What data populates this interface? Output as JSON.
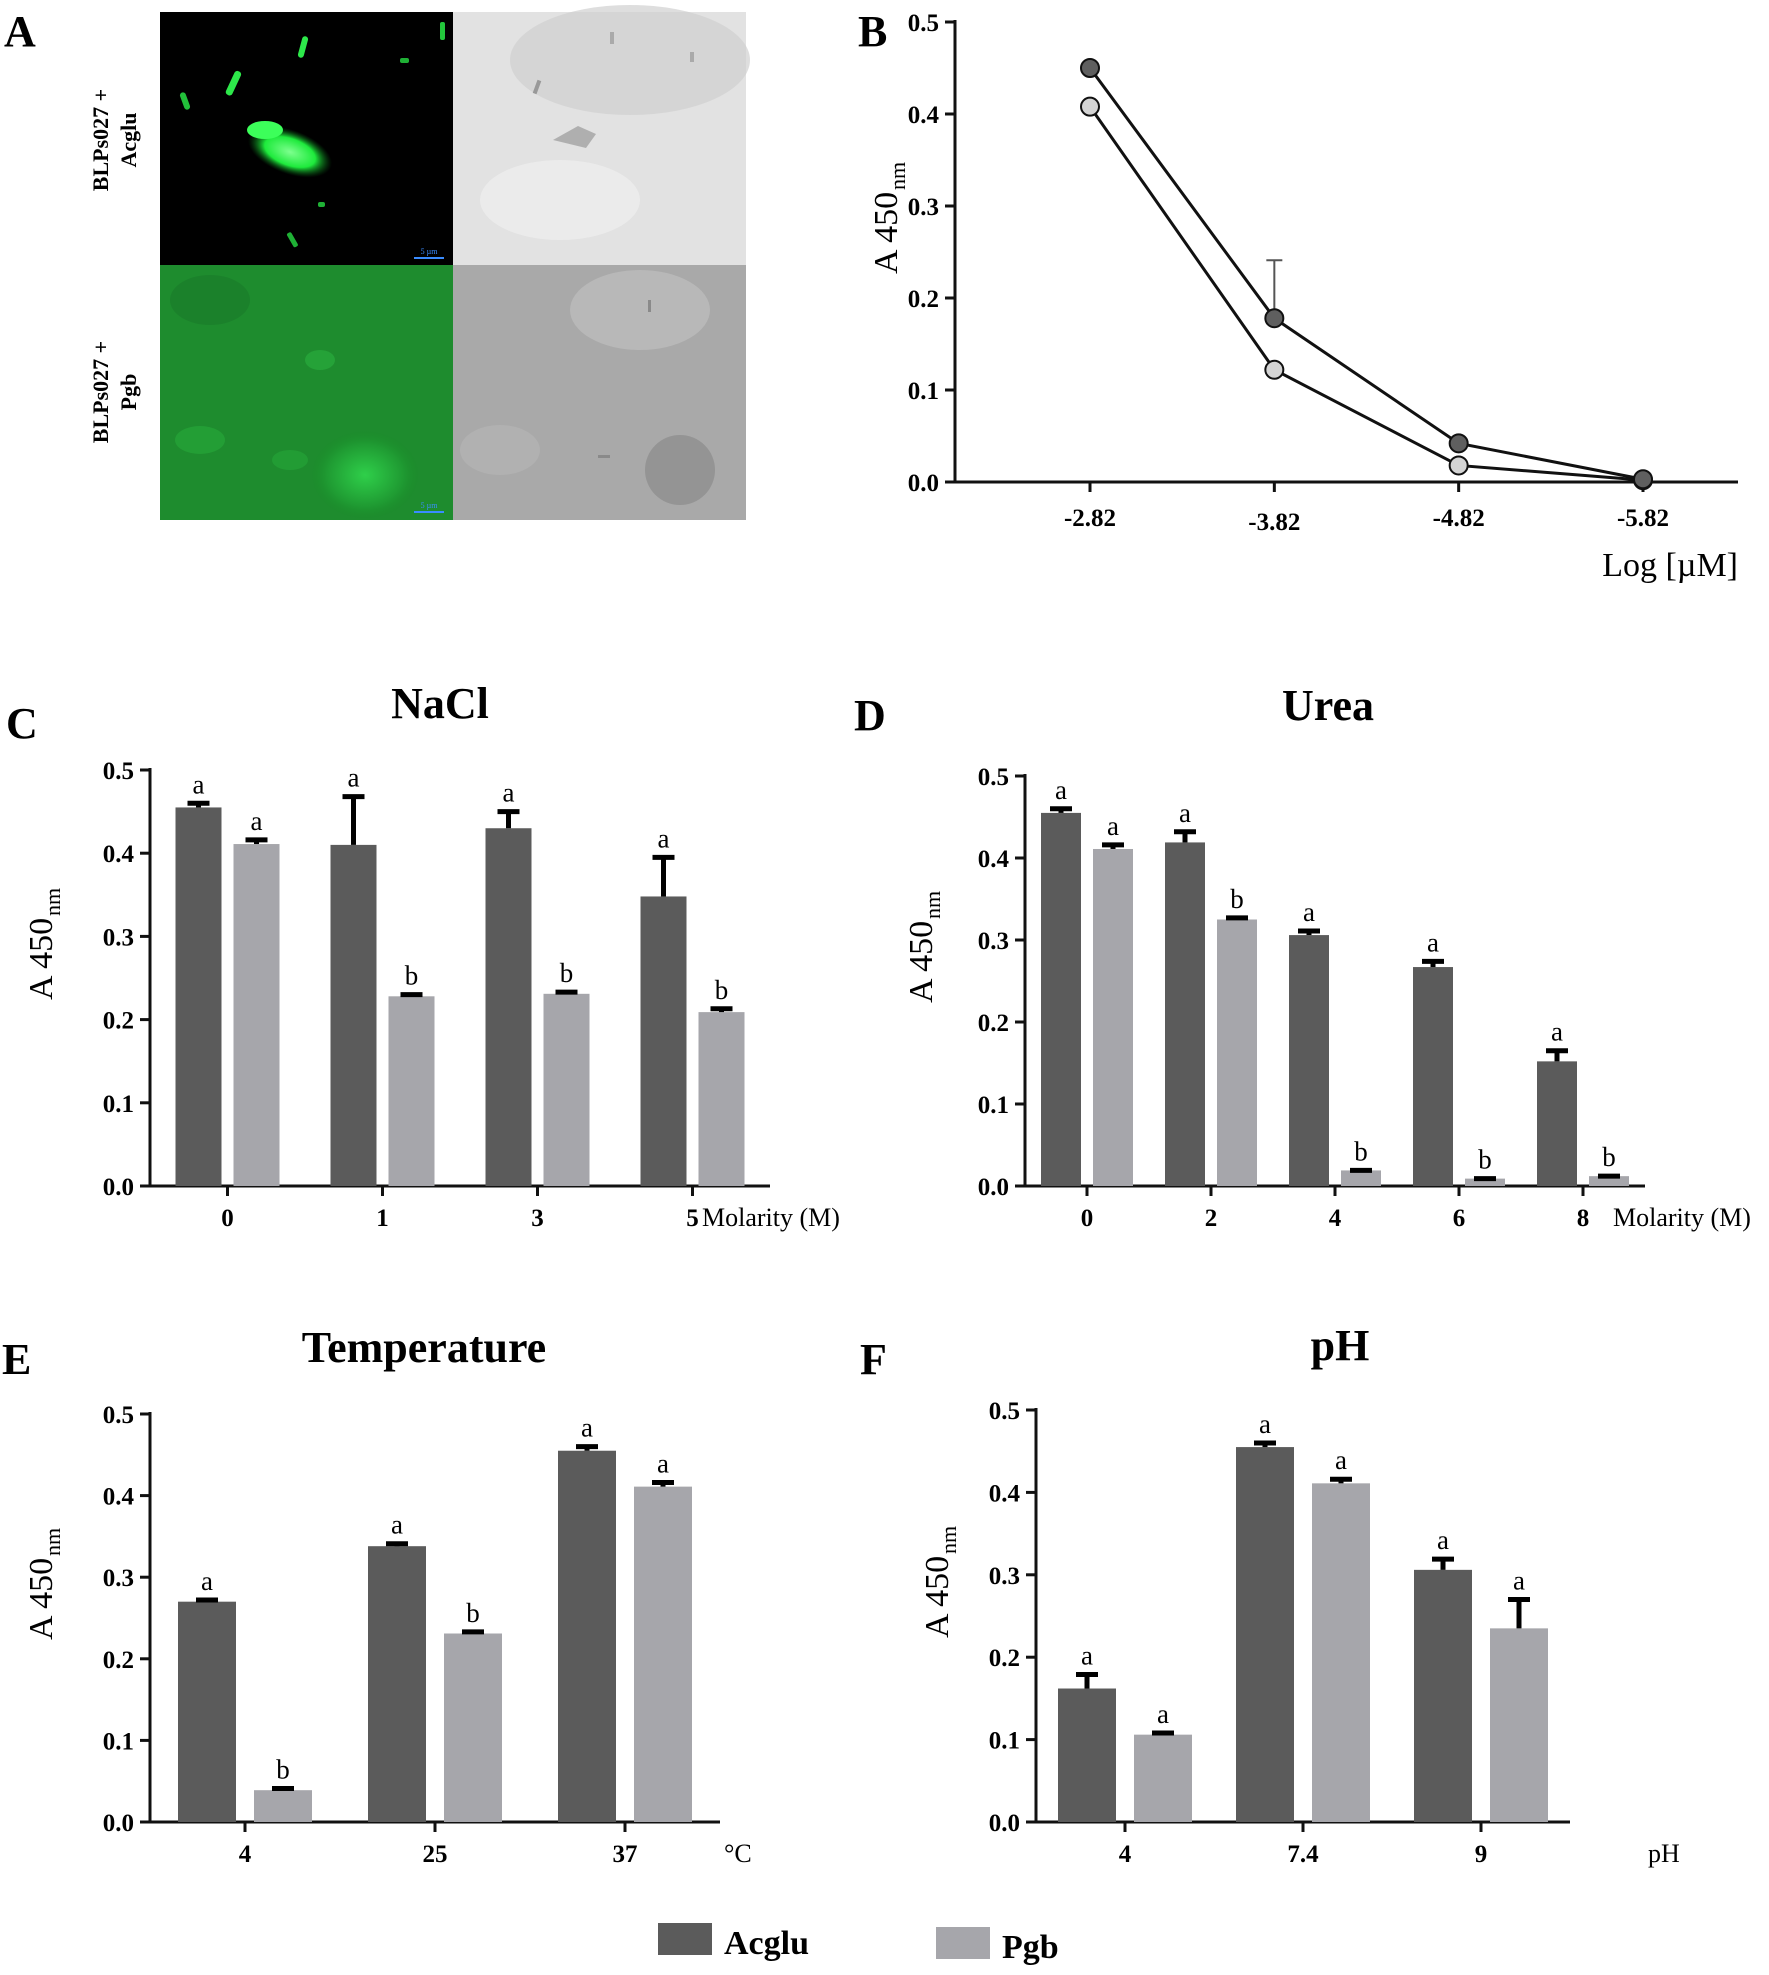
{
  "colors": {
    "Acglu": "#5b5b5b",
    "Pgb": "#a6a6ab",
    "bPoint1": "#5f5f5f",
    "bPoint2": "#d4d4d4",
    "micro_bright": "#1eea3c",
    "micro_dim": "#188c28"
  },
  "panels": {
    "A": {
      "letter": "A",
      "row_labels": [
        {
          "line1": "BLPs027 +",
          "line2": "Acglu"
        },
        {
          "line1": "BLPs027 +",
          "line2": "Pgb"
        }
      ],
      "scale_text": "5 µm"
    }
  },
  "legend": [
    {
      "name": "Acglu",
      "color": "#5b5b5b"
    },
    {
      "name": "Pgb",
      "color": "#a6a6ab"
    }
  ],
  "chart_data": [
    {
      "id": "B",
      "letter": "B",
      "type": "line",
      "title": "",
      "x": [
        "-2.82",
        "-3.82",
        "-4.82",
        "-5.82"
      ],
      "ylabel": "A 450",
      "ylabel_sub": "nm",
      "xlabel": "Log [µM]",
      "ylim": [
        0,
        0.5
      ],
      "yticks": [
        "0.0",
        "0.1",
        "0.2",
        "0.3",
        "0.4",
        "0.5"
      ],
      "series": [
        {
          "values": [
            0.45,
            0.178,
            0.042,
            0.003
          ],
          "errors": [
            0,
            0.063,
            0,
            0
          ],
          "color": "#5f5f5f"
        },
        {
          "values": [
            0.408,
            0.122,
            0.018,
            0.002
          ],
          "errors": [
            0,
            0,
            0,
            0
          ],
          "color": "#d4d4d4"
        }
      ]
    },
    {
      "id": "C",
      "letter": "C",
      "type": "bar",
      "title": "NaCl",
      "categories": [
        "0",
        "1",
        "3",
        "5"
      ],
      "unit": "Molarity (M)",
      "ylabel": "A 450",
      "ylabel_sub": "nm",
      "ylim": [
        0,
        0.5
      ],
      "yticks": [
        "0.0",
        "0.1",
        "0.2",
        "0.3",
        "0.4",
        "0.5"
      ],
      "series": [
        {
          "name": "Acglu",
          "values": [
            0.455,
            0.41,
            0.43,
            0.348
          ],
          "errors": [
            0.005,
            0.058,
            0.02,
            0.047
          ],
          "letters": [
            "a",
            "a",
            "a",
            "a"
          ]
        },
        {
          "name": "Pgb",
          "values": [
            0.411,
            0.228,
            0.231,
            0.209
          ],
          "errors": [
            0.005,
            0.002,
            0.002,
            0.004
          ],
          "letters": [
            "a",
            "b",
            "b",
            "b"
          ]
        }
      ]
    },
    {
      "id": "D",
      "letter": "D",
      "type": "bar",
      "title": "Urea",
      "categories": [
        "0",
        "2",
        "4",
        "6",
        "8"
      ],
      "unit": "Molarity (M)",
      "ylabel": "A 450",
      "ylabel_sub": "nm",
      "ylim": [
        0,
        0.5
      ],
      "yticks": [
        "0.0",
        "0.1",
        "0.2",
        "0.3",
        "0.4",
        "0.5"
      ],
      "series": [
        {
          "name": "Acglu",
          "values": [
            0.455,
            0.419,
            0.306,
            0.267,
            0.152
          ],
          "errors": [
            0.005,
            0.013,
            0.005,
            0.007,
            0.013
          ],
          "letters": [
            "a",
            "a",
            "a",
            "a",
            "a"
          ]
        },
        {
          "name": "Pgb",
          "values": [
            0.411,
            0.325,
            0.019,
            0.009,
            0.012
          ],
          "errors": [
            0.005,
            0.002,
            0,
            0,
            0
          ],
          "letters": [
            "a",
            "b",
            "b",
            "b",
            "b"
          ]
        }
      ]
    },
    {
      "id": "E",
      "letter": "E",
      "type": "bar",
      "title": "Temperature",
      "categories": [
        "4",
        "25",
        "37"
      ],
      "unit": "°C",
      "ylabel": "A 450",
      "ylabel_sub": "nm",
      "ylim": [
        0,
        0.5
      ],
      "yticks": [
        "0.0",
        "0.1",
        "0.2",
        "0.3",
        "0.4",
        "0.5"
      ],
      "series": [
        {
          "name": "Acglu",
          "values": [
            0.27,
            0.338,
            0.455
          ],
          "errors": [
            0.002,
            0.003,
            0.005
          ],
          "letters": [
            "a",
            "a",
            "a"
          ]
        },
        {
          "name": "Pgb",
          "values": [
            0.039,
            0.231,
            0.411
          ],
          "errors": [
            0.002,
            0.002,
            0.005
          ],
          "letters": [
            "b",
            "b",
            "a"
          ]
        }
      ]
    },
    {
      "id": "F",
      "letter": "F",
      "type": "bar",
      "title": "pH",
      "categories": [
        "4",
        "7.4",
        "9"
      ],
      "unit": "pH",
      "ylabel": "A 450",
      "ylabel_sub": "nm",
      "ylim": [
        0,
        0.5
      ],
      "yticks": [
        "0.0",
        "0.1",
        "0.2",
        "0.3",
        "0.4",
        "0.5"
      ],
      "series": [
        {
          "name": "Acglu",
          "values": [
            0.162,
            0.455,
            0.306
          ],
          "errors": [
            0.017,
            0.005,
            0.013
          ],
          "letters": [
            "a",
            "a",
            "a"
          ]
        },
        {
          "name": "Pgb",
          "values": [
            0.106,
            0.411,
            0.235
          ],
          "errors": [
            0.002,
            0.005,
            0.035
          ],
          "letters": [
            "a",
            "a",
            "a"
          ]
        }
      ]
    }
  ]
}
